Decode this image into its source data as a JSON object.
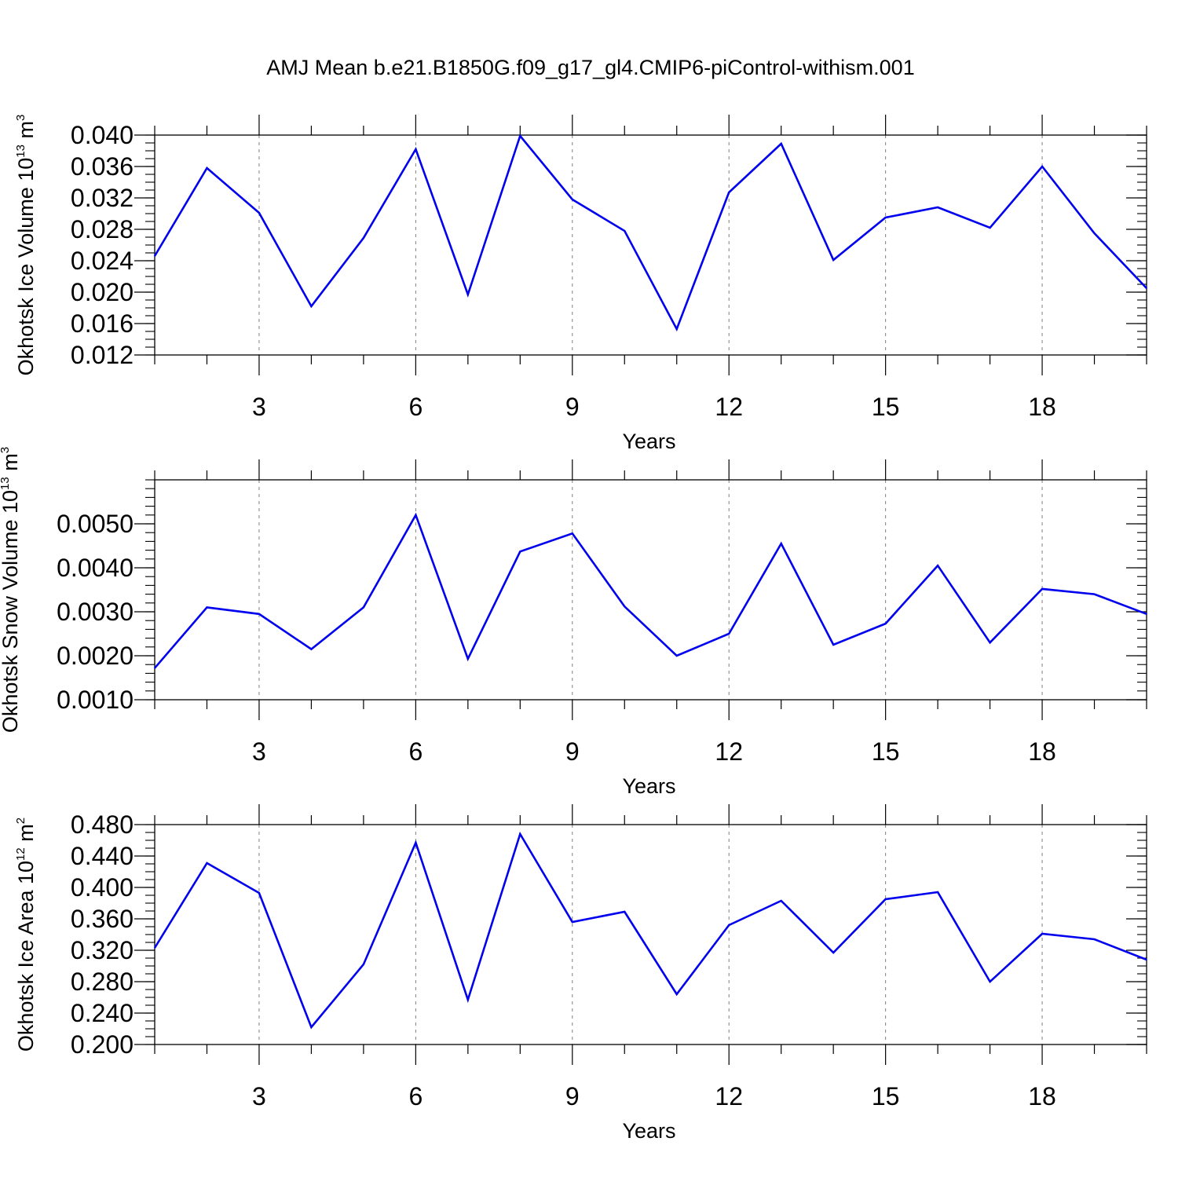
{
  "title": "AMJ Mean b.e21.B1850G.f09_g17_gl4.CMIP6-piControl-withism.001",
  "colors": {
    "line": "#0000ee",
    "axis": "#000000",
    "grid": "#7f7f7f"
  },
  "chart_data": [
    {
      "type": "line",
      "xlabel": "Years",
      "ylabel": {
        "text": "Okhotsk Ice Volume 10",
        "exp": "13",
        "unit": " m",
        "unit_exp": "3"
      },
      "xlim": [
        1,
        20
      ],
      "ylim": [
        0.012,
        0.04
      ],
      "x_ticks": [
        3,
        6,
        9,
        12,
        15,
        18
      ],
      "y_ticks": [
        "0.012",
        "0.016",
        "0.020",
        "0.024",
        "0.028",
        "0.032",
        "0.036",
        "0.040"
      ],
      "y_minor_step": 0.001,
      "x": [
        1,
        2,
        3,
        4,
        5,
        6,
        7,
        8,
        9,
        10,
        11,
        12,
        13,
        14,
        15,
        16,
        17,
        18,
        19,
        20
      ],
      "series": [
        {
          "values": [
            0.0246,
            0.0358,
            0.0301,
            0.0182,
            0.0269,
            0.0382,
            0.0197,
            0.0399,
            0.0318,
            0.0278,
            0.0153,
            0.0327,
            0.0389,
            0.0241,
            0.0295,
            0.0308,
            0.0282,
            0.036,
            0.0275,
            0.0205
          ]
        }
      ]
    },
    {
      "type": "line",
      "xlabel": "Years",
      "ylabel": {
        "text": "Okhotsk Snow Volume 10",
        "exp": "13",
        "unit": " m",
        "unit_exp": "3"
      },
      "xlim": [
        1,
        20
      ],
      "ylim": [
        0.001,
        0.006
      ],
      "x_ticks": [
        3,
        6,
        9,
        12,
        15,
        18
      ],
      "y_ticks": [
        "0.0010",
        "0.0020",
        "0.0030",
        "0.0040",
        "0.0050"
      ],
      "y_minor_step": 0.0002,
      "x": [
        1,
        2,
        3,
        4,
        5,
        6,
        7,
        8,
        9,
        10,
        11,
        12,
        13,
        14,
        15,
        16,
        17,
        18,
        19,
        20
      ],
      "series": [
        {
          "values": [
            0.00172,
            0.0031,
            0.00295,
            0.00215,
            0.0031,
            0.0052,
            0.00193,
            0.00437,
            0.00478,
            0.00312,
            0.002,
            0.0025,
            0.00455,
            0.00225,
            0.00273,
            0.00405,
            0.0023,
            0.00352,
            0.0034,
            0.00295
          ]
        }
      ]
    },
    {
      "type": "line",
      "xlabel": "Years",
      "ylabel": {
        "text": "Okhotsk Ice Area 10",
        "exp": "12",
        "unit": " m",
        "unit_exp": "2"
      },
      "xlim": [
        1,
        20
      ],
      "ylim": [
        0.2,
        0.48
      ],
      "x_ticks": [
        3,
        6,
        9,
        12,
        15,
        18
      ],
      "y_ticks": [
        "0.200",
        "0.240",
        "0.280",
        "0.320",
        "0.360",
        "0.400",
        "0.440",
        "0.480"
      ],
      "y_minor_step": 0.01,
      "x": [
        1,
        2,
        3,
        4,
        5,
        6,
        7,
        8,
        9,
        10,
        11,
        12,
        13,
        14,
        15,
        16,
        17,
        18,
        19,
        20
      ],
      "series": [
        {
          "values": [
            0.323,
            0.431,
            0.393,
            0.222,
            0.302,
            0.457,
            0.257,
            0.468,
            0.356,
            0.369,
            0.264,
            0.352,
            0.383,
            0.317,
            0.385,
            0.394,
            0.28,
            0.341,
            0.334,
            0.308
          ]
        }
      ]
    }
  ]
}
